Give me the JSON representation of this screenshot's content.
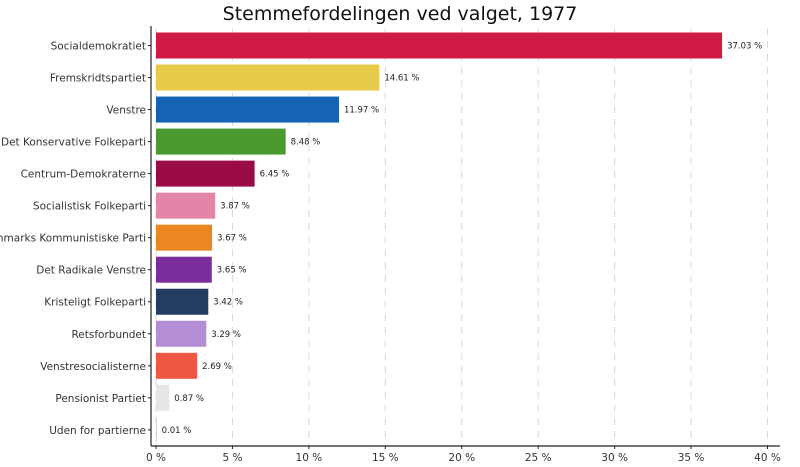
{
  "chart_data": {
    "type": "bar",
    "orientation": "horizontal",
    "title": "Stemmefordelingen ved valget, 1977",
    "xlabel": "",
    "ylabel": "",
    "xlim": [
      0,
      41
    ],
    "x_ticks": [
      0,
      5,
      10,
      15,
      20,
      25,
      30,
      35,
      40
    ],
    "tick_suffix": " %",
    "grid": "vertical dashed",
    "legend": "none",
    "categories": [
      "Socialdemokratiet",
      "Fremskridtspartiet",
      "Venstre",
      "Det Konservative Folkeparti",
      "Centrum-Demokraterne",
      "Socialistisk Folkeparti",
      "Danmarks Kommunistiske Parti",
      "Det Radikale Venstre",
      "Kristeligt Folkeparti",
      "Retsforbundet",
      "Venstresocialisterne",
      "Pensionist Partiet",
      "Uden for partierne"
    ],
    "values": [
      37.03,
      14.61,
      11.97,
      8.48,
      6.45,
      3.87,
      3.67,
      3.65,
      3.42,
      3.29,
      2.69,
      0.87,
      0.01
    ],
    "value_labels": [
      "37.03 %",
      "14.61 %",
      "11.97 %",
      "8.48 %",
      "6.45 %",
      "3.87 %",
      "3.67 %",
      "3.65 %",
      "3.42 %",
      "3.29 %",
      "2.69 %",
      "0.87 %",
      "0.01 %"
    ],
    "colors": [
      "#D01C44",
      "#E8CB48",
      "#1463B5",
      "#4A9A2F",
      "#9B0B46",
      "#E384A9",
      "#EA8720",
      "#7B2D9C",
      "#233C61",
      "#B48ED5",
      "#EE5741",
      "#E6E6E6",
      "#BDBDBD"
    ]
  }
}
